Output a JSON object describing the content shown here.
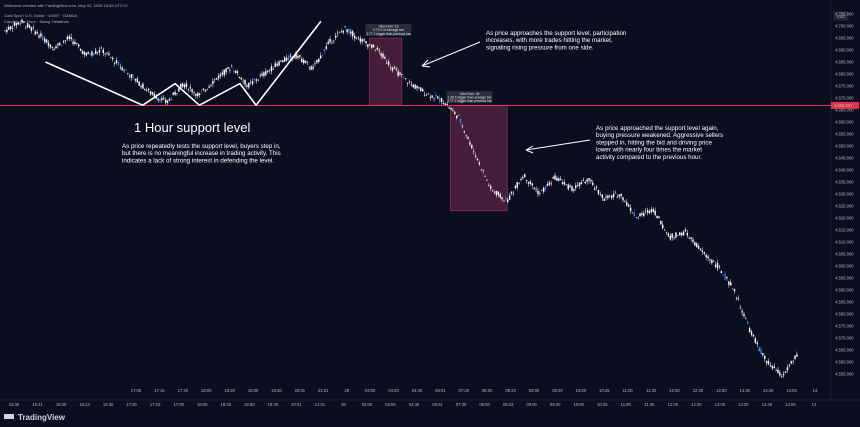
{
  "header": {
    "created_by": "Zellerman created with TradingView.com, May 02, 2026 16:26 UTC+2",
    "symbol": "Gold Spot / U.S. Dollar · 1000T · OANDA",
    "indicator": "Candles Per Hour · Swing Trestimes"
  },
  "currency_badge": "USD",
  "current_price_tag": "4,666.897",
  "brand": "TradingView",
  "chart_data": {
    "type": "line",
    "price_axis": {
      "min": 4550,
      "max": 4705,
      "ticks": [
        "4,705.000",
        "4,700.000",
        "4,695.000",
        "4,690.000",
        "4,685.000",
        "4,680.000",
        "4,675.000",
        "4,670.000",
        "4,665.000",
        "4,660.000",
        "4,655.000",
        "4,650.000",
        "4,645.000",
        "4,640.000",
        "4,635.000",
        "4,630.000",
        "4,625.000",
        "4,620.000",
        "4,615.000",
        "4,610.000",
        "4,605.000",
        "4,600.000",
        "4,595.000",
        "4,590.000",
        "4,585.000",
        "4,580.000",
        "4,575.000",
        "4,570.000",
        "4,565.000",
        "4,560.000",
        "4,555.000"
      ]
    },
    "time_axis": {
      "bottom_ticks": [
        "15:30",
        "15:41",
        "16:00",
        "16:13",
        "16:30",
        "17:00",
        "17:15",
        "17:30",
        "18:00",
        "18:23",
        "19:00",
        "19:30",
        "20:01",
        "21:01",
        "28",
        "03:00",
        "04:00",
        "04:30",
        "06:01",
        "07:30",
        "08:00",
        "08:23",
        "09:00",
        "09:30",
        "10:00",
        "10:25",
        "11:00",
        "11:30",
        "12:00",
        "12:30",
        "13:00",
        "13:30",
        "13:45",
        "14:00",
        "14"
      ],
      "top_ticks": [
        "17:00",
        "17:15",
        "17:30",
        "18:00",
        "18:20",
        "19:00",
        "19:30",
        "20:01",
        "21:01",
        "28",
        "03:00",
        "04:00",
        "04:30",
        "06:01",
        "07:30",
        "08:00",
        "08:23",
        "09:00",
        "09:30",
        "10:00",
        "10:25",
        "11:00",
        "11:30",
        "12:00",
        "12:30",
        "13:00",
        "13:30",
        "13:45",
        "14:00",
        "14"
      ]
    },
    "price_series": [
      [
        0,
        4698
      ],
      [
        0.02,
        4702
      ],
      [
        0.04,
        4697
      ],
      [
        0.06,
        4691
      ],
      [
        0.08,
        4695
      ],
      [
        0.1,
        4688
      ],
      [
        0.12,
        4690
      ],
      [
        0.14,
        4684
      ],
      [
        0.16,
        4678
      ],
      [
        0.18,
        4672
      ],
      [
        0.2,
        4668
      ],
      [
        0.22,
        4676
      ],
      [
        0.24,
        4671
      ],
      [
        0.26,
        4678
      ],
      [
        0.28,
        4683
      ],
      [
        0.3,
        4675
      ],
      [
        0.32,
        4680
      ],
      [
        0.34,
        4685
      ],
      [
        0.36,
        4688
      ],
      [
        0.38,
        4682
      ],
      [
        0.4,
        4693
      ],
      [
        0.42,
        4699
      ],
      [
        0.44,
        4694
      ],
      [
        0.46,
        4690
      ],
      [
        0.48,
        4682
      ],
      [
        0.5,
        4676
      ],
      [
        0.52,
        4672
      ],
      [
        0.54,
        4669
      ],
      [
        0.56,
        4662
      ],
      [
        0.58,
        4647
      ],
      [
        0.6,
        4632
      ],
      [
        0.62,
        4627
      ],
      [
        0.64,
        4638
      ],
      [
        0.66,
        4630
      ],
      [
        0.68,
        4637
      ],
      [
        0.7,
        4632
      ],
      [
        0.72,
        4636
      ],
      [
        0.74,
        4628
      ],
      [
        0.76,
        4630
      ],
      [
        0.78,
        4620
      ],
      [
        0.8,
        4624
      ],
      [
        0.82,
        4612
      ],
      [
        0.84,
        4614
      ],
      [
        0.86,
        4606
      ],
      [
        0.88,
        4600
      ],
      [
        0.9,
        4590
      ],
      [
        0.92,
        4573
      ],
      [
        0.94,
        4560
      ],
      [
        0.96,
        4554
      ],
      [
        0.98,
        4564
      ]
    ],
    "support_level": 4666.9,
    "zigzag": [
      [
        0.05,
        4685
      ],
      [
        0.17,
        4667
      ],
      [
        0.21,
        4676
      ],
      [
        0.24,
        4667
      ],
      [
        0.29,
        4676
      ],
      [
        0.31,
        4667
      ],
      [
        0.39,
        4702
      ]
    ],
    "volume_boxes": [
      {
        "start": 0.45,
        "end": 0.49,
        "top": 4695,
        "bottom": 4667,
        "lines": [
          "Vlow Dom: 16",
          "0.72 X of average bar",
          "2.77 X bigger than previous bar"
        ]
      },
      {
        "start": 0.55,
        "end": 0.62,
        "top": 4667,
        "bottom": 4623,
        "lines": [
          "Vlow Dom: 49",
          "1.38 X bigger than average bar",
          "3.77 X bigger than previous bar"
        ]
      }
    ],
    "annotations": [
      {
        "id": "support",
        "text": [
          "1 Hour support level"
        ]
      },
      {
        "id": "tests",
        "text": [
          "As price repeatedly tests the support level, buyers step in,",
          "but there is no meaningful increase in trading activity. This",
          "indicates a lack of strong interest in defending the level."
        ]
      },
      {
        "id": "approach",
        "text": [
          "As price approaches the support level, participation",
          "increases, with more trades hitting the market,",
          "signaling rising pressure from one side."
        ]
      },
      {
        "id": "weakened",
        "text": [
          "As price approached the support level again,",
          "buying pressure weakened. Aggressive sellers",
          "stepped in, hitting the bid and driving price",
          "lower with nearly four times the market",
          "activity compared to the previous hour."
        ]
      }
    ],
    "colors": {
      "background": "#0b0e1f",
      "candles": "#ffffff",
      "support_line": "#e0334f",
      "box_fill": "#5b2342",
      "box_stroke": "#9e3a5a",
      "blue_wick": "#2d7ff9"
    }
  }
}
